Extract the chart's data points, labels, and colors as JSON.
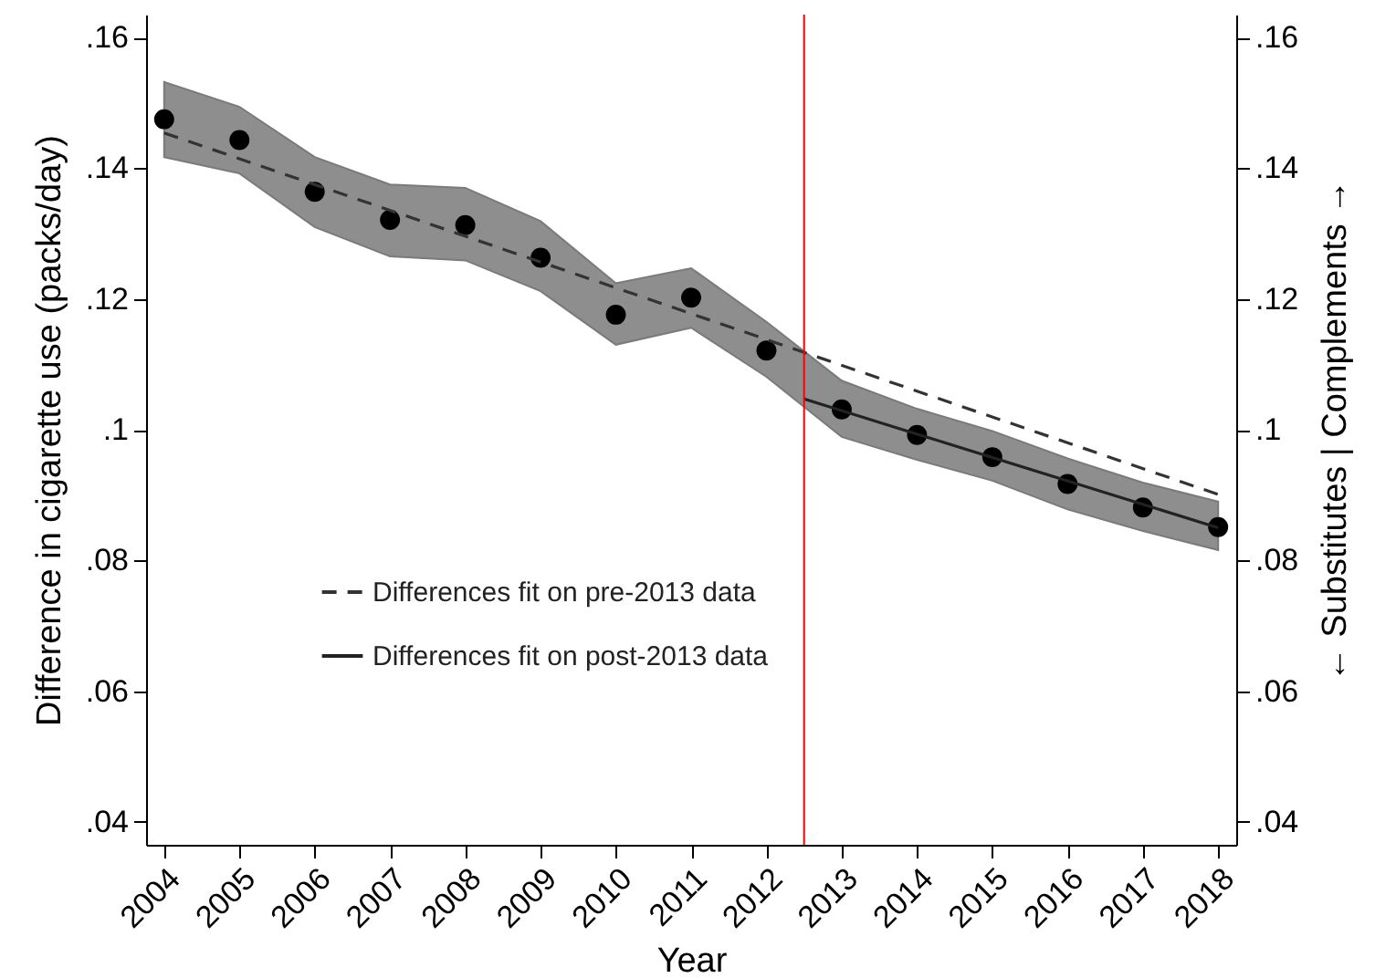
{
  "chart_data": {
    "type": "scatter",
    "xlabel": "Year",
    "ylabel": "Difference in cigarette use (packs/day)",
    "y2label": "← Substitutes | Complements →",
    "xlim": [
      2003.76,
      2018.24
    ],
    "xticks": [
      2004,
      2005,
      2006,
      2007,
      2008,
      2009,
      2010,
      2011,
      2012,
      2013,
      2014,
      2015,
      2016,
      2017,
      2018
    ],
    "ylim": [
      0.0365,
      0.1635
    ],
    "yticks": [
      {
        "value": 0.04,
        "label": ".04"
      },
      {
        "value": 0.06,
        "label": ".06"
      },
      {
        "value": 0.08,
        "label": ".08"
      },
      {
        "value": 0.1,
        "label": ".1"
      },
      {
        "value": 0.12,
        "label": ".12"
      },
      {
        "value": 0.14,
        "label": ".14"
      },
      {
        "value": 0.16,
        "label": ".16"
      }
    ],
    "y2lim": [
      0.0365,
      0.1635
    ],
    "y2ticks": [
      {
        "value": 0.04,
        "label": ".04"
      },
      {
        "value": 0.06,
        "label": ".06"
      },
      {
        "value": 0.08,
        "label": ".08"
      },
      {
        "value": 0.1,
        "label": ".1"
      },
      {
        "value": 0.12,
        "label": ".12"
      },
      {
        "value": 0.14,
        "label": ".14"
      },
      {
        "value": 0.16,
        "label": ".16"
      }
    ],
    "x": [
      2004,
      2005,
      2006,
      2007,
      2008,
      2009,
      2010,
      2011,
      2012,
      2013,
      2014,
      2015,
      2016,
      2017,
      2018
    ],
    "series": [
      {
        "type": "scatter",
        "color": "#000000",
        "marker": "circle",
        "values": [
          0.1475,
          0.1443,
          0.1364,
          0.1321,
          0.1313,
          0.1263,
          0.1176,
          0.1202,
          0.1121,
          0.1031,
          0.0992,
          0.0958,
          0.0917,
          0.0881,
          0.0851
        ],
        "lower": [
          0.1417,
          0.1392,
          0.131,
          0.1265,
          0.1259,
          0.1212,
          0.113,
          0.1156,
          0.1081,
          0.0989,
          0.0954,
          0.0922,
          0.0878,
          0.0845,
          0.0816
        ],
        "upper": [
          0.1532,
          0.1494,
          0.1417,
          0.1375,
          0.137,
          0.1319,
          0.1224,
          0.1247,
          0.1165,
          0.1075,
          0.1032,
          0.0998,
          0.0956,
          0.0919,
          0.089
        ]
      },
      {
        "type": "line",
        "name": "Differences fit on pre-2013 data",
        "color": "#333333",
        "line_style": "dashed",
        "x": [
          2004,
          2018
        ],
        "values": [
          0.1454,
          0.0901
        ]
      },
      {
        "type": "line",
        "name": "Differences fit on post-2013 data",
        "color": "#222222",
        "line_style": "solid",
        "x": [
          2012.5,
          2018
        ],
        "values": [
          0.1047,
          0.085
        ]
      }
    ],
    "ref_lines": [
      {
        "axis": "x",
        "value": 2012.5,
        "color": "#ff0000"
      }
    ],
    "legend": "bottom left",
    "grid": false
  }
}
